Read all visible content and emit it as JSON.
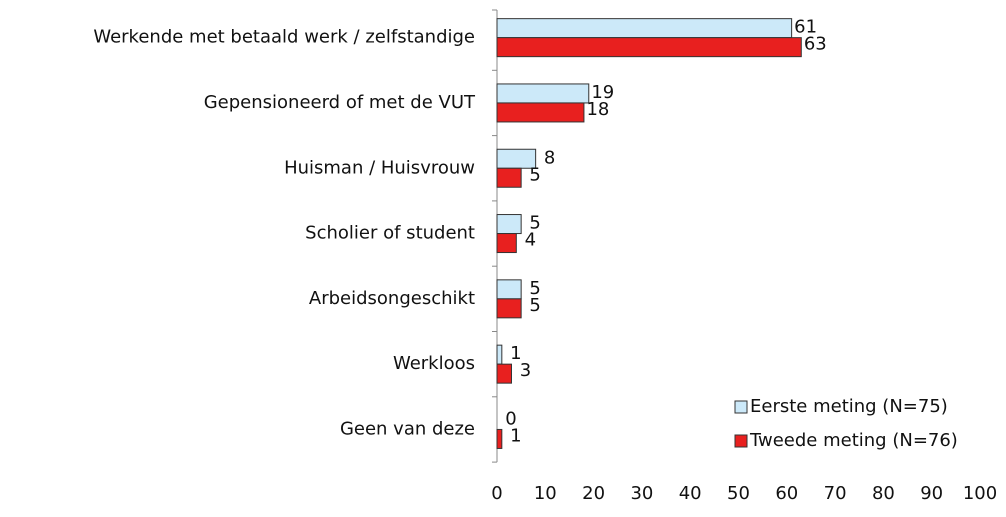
{
  "chart_data": {
    "type": "bar",
    "orientation": "horizontal",
    "categories": [
      "Werkende met betaald werk / zelfstandige",
      "Gepensioneerd of met de VUT",
      "Huisman / Huisvrouw",
      "Scholier of student",
      "Arbeidsongeschikt",
      "Werkloos",
      "Geen van deze"
    ],
    "series": [
      {
        "name": "Eerste meting (N=75)",
        "color": "#cce9f9",
        "values": [
          61,
          19,
          8,
          5,
          5,
          1,
          0
        ]
      },
      {
        "name": "Tweede meting (N=76)",
        "color": "#e8201f",
        "values": [
          63,
          18,
          5,
          4,
          5,
          3,
          1
        ]
      }
    ],
    "xlim": [
      0,
      100
    ],
    "xticks": [
      0,
      10,
      20,
      30,
      40,
      50,
      60,
      70,
      80,
      90,
      100
    ],
    "legend": "lower right"
  }
}
